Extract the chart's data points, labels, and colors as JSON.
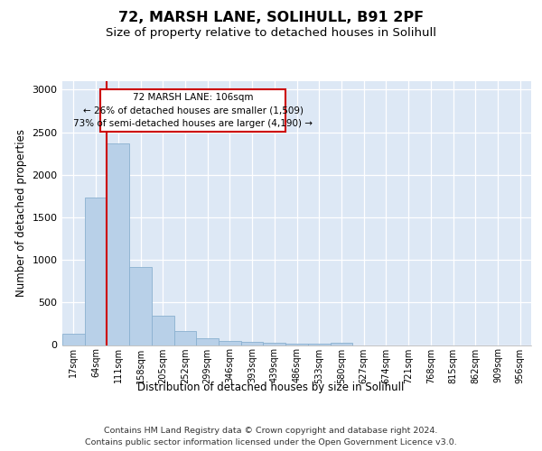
{
  "title1": "72, MARSH LANE, SOLIHULL, B91 2PF",
  "title2": "Size of property relative to detached houses in Solihull",
  "xlabel": "Distribution of detached houses by size in Solihull",
  "ylabel": "Number of detached properties",
  "categories": [
    "17sqm",
    "64sqm",
    "111sqm",
    "158sqm",
    "205sqm",
    "252sqm",
    "299sqm",
    "346sqm",
    "393sqm",
    "439sqm",
    "486sqm",
    "533sqm",
    "580sqm",
    "627sqm",
    "674sqm",
    "721sqm",
    "768sqm",
    "815sqm",
    "862sqm",
    "909sqm",
    "956sqm"
  ],
  "values": [
    130,
    1730,
    2370,
    920,
    340,
    160,
    80,
    50,
    40,
    30,
    20,
    20,
    30,
    0,
    0,
    0,
    0,
    0,
    0,
    0,
    0
  ],
  "bar_color": "#b8d0e8",
  "bar_edge_color": "#8ab0d0",
  "marker_bin_index": 2,
  "marker_color": "#cc0000",
  "annotation_line1": "72 MARSH LANE: 106sqm",
  "annotation_line2": "← 26% of detached houses are smaller (1,509)",
  "annotation_line3": "73% of semi-detached houses are larger (4,190) →",
  "annotation_box_facecolor": "#ffffff",
  "annotation_box_edgecolor": "#cc0000",
  "footer_line1": "Contains HM Land Registry data © Crown copyright and database right 2024.",
  "footer_line2": "Contains public sector information licensed under the Open Government Licence v3.0.",
  "ylim": [
    0,
    3100
  ],
  "background_color": "#dde8f5"
}
